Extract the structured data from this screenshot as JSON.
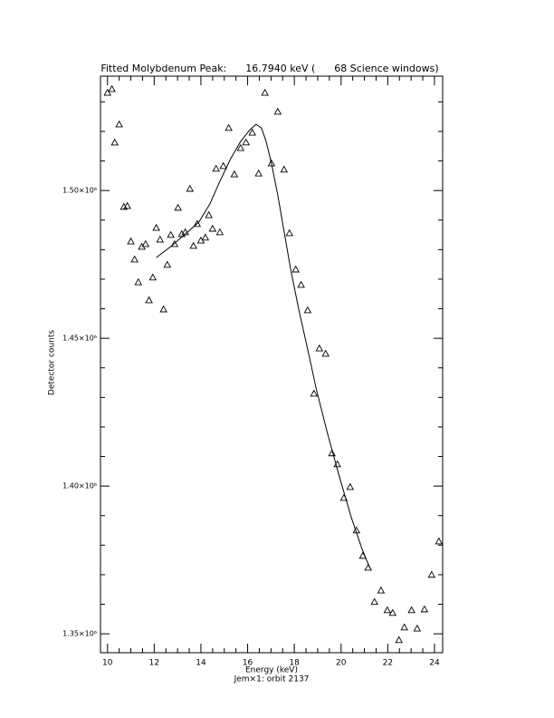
{
  "chart_data": {
    "type": "scatter",
    "title": "Fitted Molybdenum Peak:      16.7940 keV (      68 Science windows)",
    "xlabel": "Energy (keV)",
    "subtitle": "Jem×1: orbit 2137",
    "ylabel": "Detector counts",
    "xlim": [
      9.7,
      24.35
    ],
    "ylim": [
      1343600,
      1538700
    ],
    "xticks": [
      10,
      12,
      14,
      16,
      18,
      20,
      22,
      24
    ],
    "yticks": [
      {
        "value": 1350000,
        "label": "1.35×10⁶"
      },
      {
        "value": 1400000,
        "label": "1.40×10⁶"
      },
      {
        "value": 1450000,
        "label": "1.45×10⁶"
      },
      {
        "value": 1500000,
        "label": "1.50×10⁶"
      }
    ],
    "xminor": 4,
    "yminor": 5,
    "series": [
      {
        "color": "#000000",
        "marker": "triangle",
        "x": [
          10.0,
          10.19,
          10.31,
          10.5,
          10.7,
          10.85,
          11.0,
          11.16,
          11.32,
          11.47,
          11.63,
          11.78,
          11.94,
          12.09,
          12.25,
          12.4,
          12.56,
          12.71,
          12.87,
          13.02,
          13.18,
          13.33,
          13.53,
          13.68,
          13.84,
          14.0,
          14.19,
          14.34,
          14.5,
          14.65,
          14.81,
          14.96,
          15.19,
          15.43,
          15.7,
          15.93,
          16.2,
          16.47,
          16.74,
          17.02,
          17.29,
          17.56,
          17.79,
          18.06,
          18.29,
          18.57,
          18.84,
          19.07,
          19.34,
          19.61,
          19.84,
          20.12,
          20.39,
          20.66,
          20.93,
          21.16,
          21.43,
          21.71,
          21.98,
          22.21,
          22.48,
          22.71,
          23.02,
          23.26,
          23.57,
          23.88,
          24.19
        ],
        "values": [
          1533100,
          1534350,
          1516250,
          1522400,
          1494500,
          1494800,
          1482800,
          1476700,
          1469000,
          1481000,
          1481900,
          1462900,
          1470600,
          1487400,
          1483400,
          1459800,
          1474900,
          1485000,
          1481900,
          1494200,
          1485300,
          1485900,
          1500600,
          1481300,
          1488700,
          1483100,
          1484100,
          1491700,
          1487100,
          1507400,
          1485900,
          1508300,
          1521200,
          1505500,
          1514400,
          1516300,
          1519600,
          1505800,
          1533100,
          1509200,
          1526700,
          1507100,
          1485600,
          1473300,
          1468100,
          1459500,
          1431300,
          1446600,
          1444800,
          1411100,
          1407400,
          1396000,
          1399700,
          1385000,
          1376400,
          1372400,
          1360800,
          1364700,
          1358000,
          1357100,
          1347900,
          1352200,
          1358000,
          1351800,
          1358300,
          1370000,
          1381300
        ]
      },
      {
        "color": "#000000",
        "marker": "line",
        "x": [
          12.09,
          12.75,
          13.33,
          13.91,
          14.38,
          14.81,
          15.27,
          15.7,
          16.09,
          16.36,
          16.59,
          16.78,
          17.02,
          17.29,
          17.56,
          17.83,
          18.18,
          18.57,
          18.95,
          19.42,
          19.92,
          20.43,
          20.89,
          21.24
        ],
        "values": [
          1477300,
          1481300,
          1485300,
          1489300,
          1495400,
          1503100,
          1510700,
          1516600,
          1520500,
          1522400,
          1521200,
          1516900,
          1509200,
          1498500,
          1486200,
          1473900,
          1460100,
          1446300,
          1432500,
          1417800,
          1403400,
          1389600,
          1378900,
          1372100
        ]
      }
    ]
  }
}
